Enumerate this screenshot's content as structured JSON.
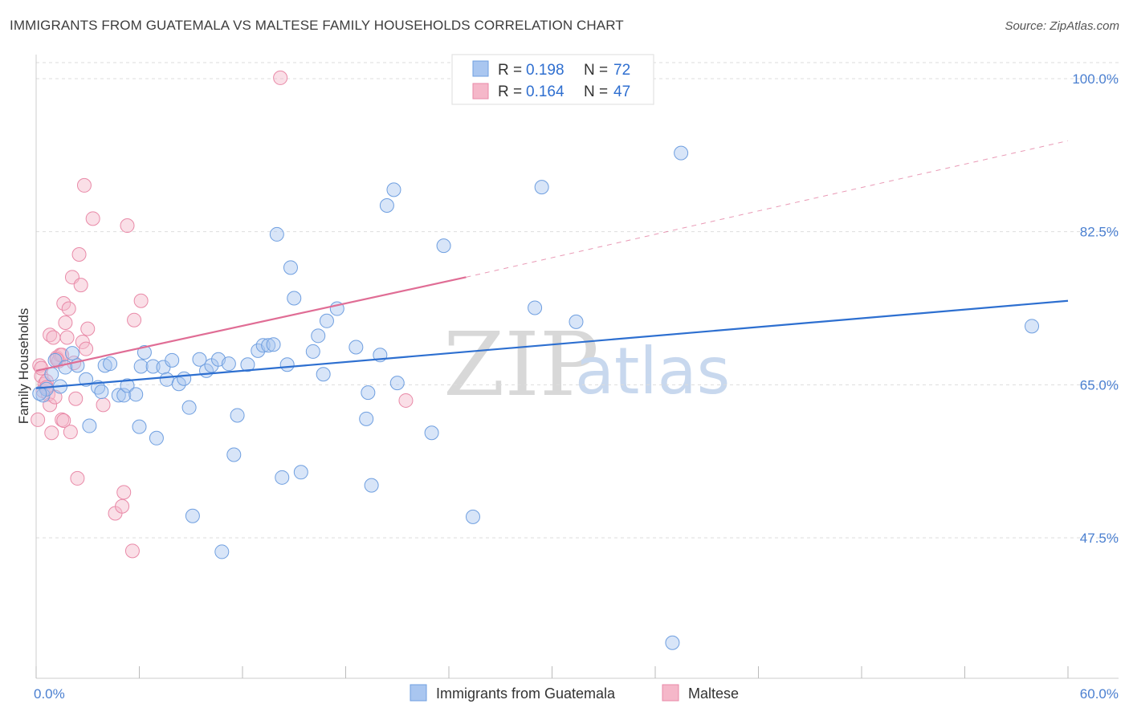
{
  "header": {
    "title": "IMMIGRANTS FROM GUATEMALA VS MALTESE FAMILY HOUSEHOLDS CORRELATION CHART",
    "source": "Source: ZipAtlas.com"
  },
  "watermark": {
    "zip": "ZIP",
    "atlas": "atlas"
  },
  "colors": {
    "blue_fill": "#a9c6f0",
    "blue_stroke": "#6f9fe0",
    "blue_line": "#2d6fd0",
    "pink_fill": "#f5b7c9",
    "pink_stroke": "#e98aa8",
    "pink_line": "#e06d95",
    "tick_text": "#4a7fd0",
    "grid": "#dddddd"
  },
  "legend": {
    "rows": [
      {
        "r_label": "R =",
        "r_value": "0.198",
        "n_label": "N =",
        "n_value": "72"
      },
      {
        "r_label": "R =",
        "r_value": "0.164",
        "n_label": "N =",
        "n_value": "47"
      }
    ]
  },
  "chart_data": {
    "type": "scatter",
    "title": "IMMIGRANTS FROM GUATEMALA VS MALTESE FAMILY HOUSEHOLDS CORRELATION CHART",
    "xlabel": "",
    "ylabel": "Family Households",
    "xlim": [
      0,
      60
    ],
    "ylim": [
      33,
      102
    ],
    "x_tick_labels": [
      "0.0%",
      "60.0%"
    ],
    "x_tick_values": [
      0,
      60
    ],
    "y_tick_labels": [
      "100.0%",
      "82.5%",
      "65.0%",
      "47.5%"
    ],
    "y_tick_values": [
      100,
      82.5,
      65,
      47.5
    ],
    "grid": true,
    "legend_position": "top-center",
    "series": [
      {
        "name": "Immigrants from Guatemala",
        "r": 0.198,
        "n": 72,
        "trend": {
          "x0": 0,
          "y0": 64.6,
          "x1": 60,
          "y1": 74.6
        },
        "points": [
          [
            0.4,
            63.8
          ],
          [
            0.6,
            64.5
          ],
          [
            0.9,
            66.2
          ],
          [
            1.1,
            67.8
          ],
          [
            1.4,
            64.8
          ],
          [
            1.7,
            67.0
          ],
          [
            2.1,
            68.6
          ],
          [
            2.4,
            67.2
          ],
          [
            2.9,
            65.6
          ],
          [
            3.1,
            60.3
          ],
          [
            3.6,
            64.7
          ],
          [
            3.8,
            64.2
          ],
          [
            4.0,
            67.2
          ],
          [
            4.3,
            67.4
          ],
          [
            4.8,
            63.8
          ],
          [
            5.1,
            63.8
          ],
          [
            5.3,
            64.9
          ],
          [
            5.8,
            63.9
          ],
          [
            6.0,
            60.2
          ],
          [
            6.1,
            67.1
          ],
          [
            6.3,
            68.7
          ],
          [
            6.8,
            67.1
          ],
          [
            7.0,
            58.9
          ],
          [
            7.4,
            67.0
          ],
          [
            7.6,
            65.6
          ],
          [
            7.9,
            67.8
          ],
          [
            8.3,
            65.1
          ],
          [
            8.6,
            65.7
          ],
          [
            8.9,
            62.4
          ],
          [
            9.1,
            50.0
          ],
          [
            9.5,
            67.9
          ],
          [
            9.9,
            66.6
          ],
          [
            10.2,
            67.2
          ],
          [
            10.6,
            67.9
          ],
          [
            10.8,
            45.9
          ],
          [
            11.2,
            67.4
          ],
          [
            11.5,
            57.0
          ],
          [
            11.7,
            61.5
          ],
          [
            12.3,
            67.3
          ],
          [
            12.9,
            68.9
          ],
          [
            13.2,
            69.5
          ],
          [
            13.5,
            69.5
          ],
          [
            13.8,
            69.6
          ],
          [
            14.0,
            82.2
          ],
          [
            14.3,
            54.4
          ],
          [
            14.6,
            67.3
          ],
          [
            14.8,
            78.4
          ],
          [
            15.0,
            74.9
          ],
          [
            15.4,
            55.0
          ],
          [
            16.1,
            68.8
          ],
          [
            16.4,
            70.6
          ],
          [
            16.7,
            66.2
          ],
          [
            16.9,
            72.3
          ],
          [
            17.5,
            73.7
          ],
          [
            18.6,
            69.3
          ],
          [
            19.3,
            64.1
          ],
          [
            19.2,
            61.1
          ],
          [
            19.5,
            53.5
          ],
          [
            20.0,
            68.4
          ],
          [
            20.4,
            85.5
          ],
          [
            20.8,
            87.3
          ],
          [
            21.0,
            65.2
          ],
          [
            23.0,
            59.5
          ],
          [
            23.7,
            80.9
          ],
          [
            25.4,
            49.9
          ],
          [
            29.0,
            73.8
          ],
          [
            29.4,
            87.6
          ],
          [
            31.4,
            72.2
          ],
          [
            37.5,
            91.5
          ],
          [
            37.0,
            35.5
          ],
          [
            57.9,
            71.7
          ],
          [
            0.2,
            64.0
          ]
        ]
      },
      {
        "name": "Maltese",
        "r": 0.164,
        "n": 47,
        "trend": {
          "x0": 0,
          "y0": 66.6,
          "x1": 25,
          "y1": 77.3
        },
        "trend_extension": {
          "x0": 25,
          "y0": 77.3,
          "x1": 60,
          "y1": 92.9
        },
        "points": [
          [
            0.1,
            61.0
          ],
          [
            0.2,
            67.2
          ],
          [
            0.3,
            66.0
          ],
          [
            0.4,
            64.3
          ],
          [
            0.5,
            65.1
          ],
          [
            0.6,
            65.4
          ],
          [
            0.7,
            63.9
          ],
          [
            0.8,
            70.7
          ],
          [
            0.8,
            62.7
          ],
          [
            0.9,
            59.5
          ],
          [
            1.0,
            70.4
          ],
          [
            1.1,
            63.6
          ],
          [
            1.2,
            68.1
          ],
          [
            1.3,
            67.7
          ],
          [
            1.4,
            68.4
          ],
          [
            1.5,
            68.4
          ],
          [
            1.5,
            61.0
          ],
          [
            1.6,
            60.9
          ],
          [
            1.6,
            74.3
          ],
          [
            1.7,
            72.1
          ],
          [
            1.8,
            70.4
          ],
          [
            1.9,
            73.7
          ],
          [
            2.0,
            59.6
          ],
          [
            2.1,
            77.3
          ],
          [
            2.2,
            67.5
          ],
          [
            2.3,
            63.4
          ],
          [
            2.4,
            54.3
          ],
          [
            2.5,
            79.9
          ],
          [
            2.6,
            76.4
          ],
          [
            2.7,
            69.9
          ],
          [
            2.8,
            87.8
          ],
          [
            2.9,
            69.1
          ],
          [
            3.0,
            71.4
          ],
          [
            3.3,
            84.0
          ],
          [
            3.9,
            62.7
          ],
          [
            4.6,
            50.3
          ],
          [
            5.0,
            51.1
          ],
          [
            5.1,
            52.7
          ],
          [
            5.3,
            83.2
          ],
          [
            5.6,
            46.0
          ],
          [
            5.7,
            72.4
          ],
          [
            6.1,
            74.6
          ],
          [
            14.2,
            100.1
          ],
          [
            21.5,
            63.2
          ],
          [
            0.3,
            66.9
          ],
          [
            0.6,
            64.7
          ],
          [
            1.2,
            67.9
          ]
        ]
      }
    ]
  },
  "bottom_legend": {
    "items": [
      {
        "label": "Immigrants from Guatemala"
      },
      {
        "label": "Maltese"
      }
    ]
  }
}
